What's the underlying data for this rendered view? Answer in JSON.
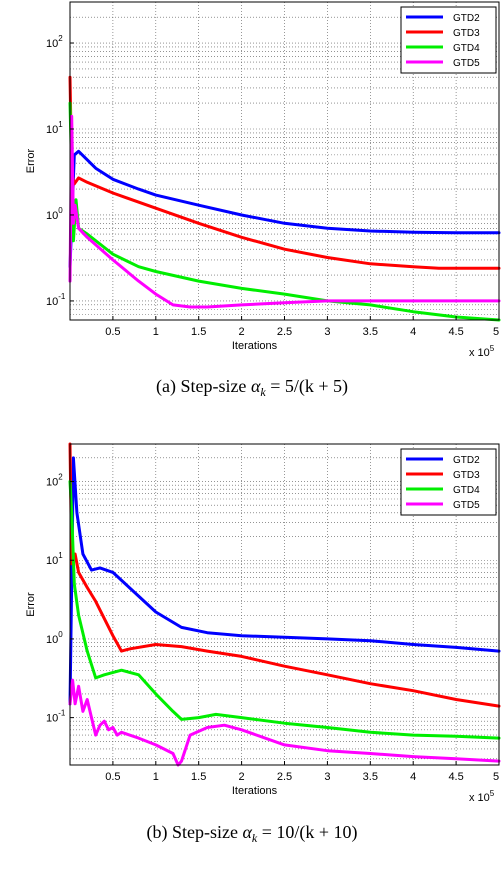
{
  "chart_data": [
    {
      "type": "line",
      "ylabel": "Error",
      "xlabel": "Iterations",
      "x_multiplier": "x 10",
      "x_multiplier_exp": "5",
      "y_scale": "log",
      "xlim": [
        0,
        5
      ],
      "ylim": [
        0.06,
        300
      ],
      "x_ticks": [
        "0.5",
        "1",
        "1.5",
        "2",
        "2.5",
        "3",
        "3.5",
        "4",
        "4.5",
        "5"
      ],
      "y_ticks": [
        {
          "base": "10",
          "exp": "-1"
        },
        {
          "base": "10",
          "exp": "0"
        },
        {
          "base": "10",
          "exp": "1"
        },
        {
          "base": "10",
          "exp": "2"
        }
      ],
      "grid": true,
      "legend": "top-right",
      "caption_prefix": "(a) Step-size ",
      "caption_math": "α",
      "caption_sub": "k",
      "caption_suffix": " = 5/(k + 5)",
      "series": [
        {
          "name": "GTD2",
          "color": "#0000ff",
          "x": [
            0,
            0.05,
            0.1,
            0.3,
            0.5,
            0.8,
            1.0,
            1.5,
            2.0,
            2.5,
            3.0,
            3.5,
            4.0,
            4.5,
            5.0
          ],
          "y": [
            0.25,
            5.0,
            5.5,
            3.5,
            2.6,
            2.0,
            1.7,
            1.3,
            1.0,
            0.8,
            0.7,
            0.65,
            0.63,
            0.62,
            0.62
          ]
        },
        {
          "name": "GTD3",
          "color": "#ff0000",
          "x": [
            0,
            0.02,
            0.05,
            0.1,
            0.2,
            0.5,
            1.0,
            1.5,
            2.0,
            2.5,
            3.0,
            3.5,
            4.0,
            4.3,
            4.6,
            5.0
          ],
          "y": [
            40,
            3.0,
            2.3,
            2.7,
            2.4,
            1.8,
            1.2,
            0.8,
            0.55,
            0.4,
            0.32,
            0.27,
            0.25,
            0.24,
            0.24,
            0.24
          ]
        },
        {
          "name": "GTD4",
          "color": "#00ee00",
          "x": [
            0,
            0.02,
            0.04,
            0.07,
            0.1,
            0.2,
            0.5,
            0.8,
            1.0,
            1.5,
            2.0,
            2.5,
            3.0,
            3.5,
            4.0,
            4.5,
            5.0
          ],
          "y": [
            20,
            3.0,
            0.5,
            1.5,
            0.7,
            0.6,
            0.35,
            0.25,
            0.22,
            0.17,
            0.14,
            0.12,
            0.1,
            0.09,
            0.075,
            0.065,
            0.06
          ]
        },
        {
          "name": "GTD5",
          "color": "#ff00ff",
          "x": [
            0,
            0.02,
            0.04,
            0.06,
            0.1,
            0.2,
            0.5,
            0.8,
            1.0,
            1.2,
            1.4,
            1.6,
            2.0,
            2.5,
            3.0,
            4.0,
            5.0
          ],
          "y": [
            0.17,
            14,
            0.8,
            1.3,
            0.7,
            0.55,
            0.3,
            0.17,
            0.12,
            0.09,
            0.085,
            0.085,
            0.09,
            0.095,
            0.1,
            0.1,
            0.1
          ]
        }
      ]
    },
    {
      "type": "line",
      "ylabel": "Error",
      "xlabel": "Iterations",
      "x_multiplier": "x 10",
      "x_multiplier_exp": "5",
      "y_scale": "log",
      "xlim": [
        0,
        5
      ],
      "ylim": [
        0.025,
        300
      ],
      "x_ticks": [
        "0.5",
        "1",
        "1.5",
        "2",
        "2.5",
        "3",
        "3.5",
        "4",
        "4.5",
        "5"
      ],
      "y_ticks": [
        {
          "base": "10",
          "exp": "-1"
        },
        {
          "base": "10",
          "exp": "0"
        },
        {
          "base": "10",
          "exp": "1"
        },
        {
          "base": "10",
          "exp": "2"
        }
      ],
      "grid": true,
      "legend": "top-right",
      "caption_prefix": "(b) Step-size ",
      "caption_math": "α",
      "caption_sub": "k",
      "caption_suffix": " = 10/(k + 10)",
      "series": [
        {
          "name": "GTD2",
          "color": "#0000ff",
          "x": [
            0,
            0.04,
            0.08,
            0.15,
            0.25,
            0.35,
            0.5,
            0.8,
            1.0,
            1.3,
            1.6,
            2.0,
            2.5,
            3.0,
            3.5,
            4.0,
            4.5,
            5.0
          ],
          "y": [
            0.15,
            200,
            40,
            12,
            7.5,
            8,
            7,
            3.5,
            2.2,
            1.4,
            1.2,
            1.1,
            1.05,
            1.0,
            0.95,
            0.85,
            0.78,
            0.7
          ]
        },
        {
          "name": "GTD3",
          "color": "#ff0000",
          "x": [
            0,
            0.02,
            0.06,
            0.1,
            0.2,
            0.3,
            0.5,
            0.6,
            0.7,
            1.0,
            1.3,
            1.6,
            2.0,
            2.5,
            3.0,
            3.5,
            4.0,
            4.5,
            5.0
          ],
          "y": [
            300,
            9,
            12,
            7,
            4.5,
            3,
            1.1,
            0.7,
            0.75,
            0.85,
            0.8,
            0.7,
            0.6,
            0.45,
            0.35,
            0.27,
            0.22,
            0.17,
            0.14
          ]
        },
        {
          "name": "GTD4",
          "color": "#00ee00",
          "x": [
            0,
            0.02,
            0.05,
            0.1,
            0.2,
            0.3,
            0.4,
            0.6,
            0.8,
            1.0,
            1.2,
            1.3,
            1.5,
            1.7,
            2.0,
            2.5,
            3.0,
            3.5,
            4.0,
            4.5,
            5.0
          ],
          "y": [
            100,
            40,
            5,
            2,
            0.7,
            0.32,
            0.35,
            0.4,
            0.35,
            0.2,
            0.12,
            0.095,
            0.1,
            0.11,
            0.1,
            0.085,
            0.075,
            0.065,
            0.06,
            0.058,
            0.055
          ]
        },
        {
          "name": "GTD5",
          "color": "#ff00ff",
          "x": [
            0,
            0.03,
            0.06,
            0.1,
            0.15,
            0.2,
            0.25,
            0.3,
            0.35,
            0.4,
            0.45,
            0.5,
            0.55,
            0.6,
            0.8,
            1.0,
            1.2,
            1.26,
            1.3,
            1.4,
            1.6,
            1.8,
            2.0,
            2.5,
            3.0,
            3.5,
            4.0,
            4.5,
            5.0
          ],
          "y": [
            0.15,
            0.3,
            0.15,
            0.25,
            0.12,
            0.17,
            0.1,
            0.06,
            0.08,
            0.09,
            0.07,
            0.075,
            0.06,
            0.065,
            0.055,
            0.045,
            0.035,
            0.025,
            0.028,
            0.06,
            0.075,
            0.08,
            0.07,
            0.045,
            0.038,
            0.035,
            0.032,
            0.03,
            0.028
          ]
        }
      ]
    }
  ]
}
